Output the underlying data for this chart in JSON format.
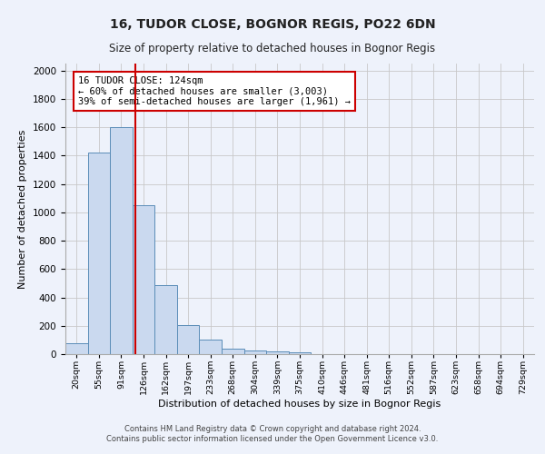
{
  "title1": "16, TUDOR CLOSE, BOGNOR REGIS, PO22 6DN",
  "title2": "Size of property relative to detached houses in Bognor Regis",
  "xlabel": "Distribution of detached houses by size in Bognor Regis",
  "ylabel": "Number of detached properties",
  "bin_labels": [
    "20sqm",
    "55sqm",
    "91sqm",
    "126sqm",
    "162sqm",
    "197sqm",
    "233sqm",
    "268sqm",
    "304sqm",
    "339sqm",
    "375sqm",
    "410sqm",
    "446sqm",
    "481sqm",
    "516sqm",
    "552sqm",
    "587sqm",
    "623sqm",
    "658sqm",
    "694sqm",
    "729sqm"
  ],
  "bar_heights": [
    80,
    1420,
    1600,
    1050,
    490,
    205,
    100,
    40,
    25,
    20,
    15,
    0,
    0,
    0,
    0,
    0,
    0,
    0,
    0,
    0,
    0
  ],
  "bar_color": "#cad9ef",
  "bar_edge_color": "#5b8db8",
  "grid_color": "#c8c8c8",
  "vline_x": 2.62,
  "vline_color": "#cc0000",
  "annotation_text": "16 TUDOR CLOSE: 124sqm\n← 60% of detached houses are smaller (3,003)\n39% of semi-detached houses are larger (1,961) →",
  "annotation_box_color": "#ffffff",
  "annotation_edge_color": "#cc0000",
  "ylim": [
    0,
    2050
  ],
  "yticks": [
    0,
    200,
    400,
    600,
    800,
    1000,
    1200,
    1400,
    1600,
    1800,
    2000
  ],
  "footnote": "Contains HM Land Registry data © Crown copyright and database right 2024.\nContains public sector information licensed under the Open Government Licence v3.0.",
  "background_color": "#eef2fb"
}
